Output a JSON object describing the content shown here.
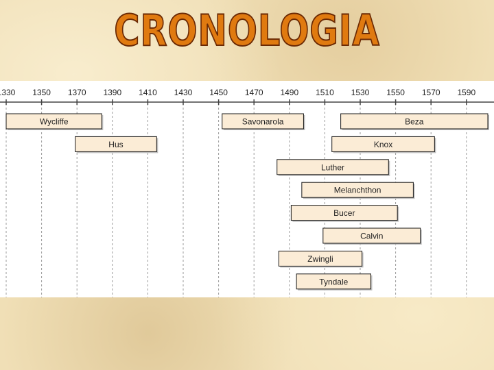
{
  "title": "CRONOLOGIA",
  "colors": {
    "bar_fill": "#fbecd6",
    "bar_stroke": "#1a1a1a",
    "grid": "#9a9a9a",
    "axis": "#444444"
  },
  "chart_data": {
    "type": "bar",
    "orientation": "horizontal-timeline",
    "x_ticks": [
      1330,
      1350,
      1370,
      1390,
      1410,
      1430,
      1450,
      1470,
      1490,
      1510,
      1530,
      1550,
      1570,
      1590
    ],
    "xlim": [
      1330,
      1602
    ],
    "grid": true,
    "series": [
      {
        "name": "Wycliffe",
        "start": 1330,
        "end": 1384,
        "row": 0
      },
      {
        "name": "Savonarola",
        "start": 1452,
        "end": 1498,
        "row": 0
      },
      {
        "name": "Beza",
        "start": 1519,
        "end": 1605,
        "row": 0
      },
      {
        "name": "Hus",
        "start": 1369,
        "end": 1415,
        "row": 1
      },
      {
        "name": "Knox",
        "start": 1514,
        "end": 1572,
        "row": 1
      },
      {
        "name": "Luther",
        "start": 1483,
        "end": 1546,
        "row": 2
      },
      {
        "name": "Melanchthon",
        "start": 1497,
        "end": 1560,
        "row": 3
      },
      {
        "name": "Bucer",
        "start": 1491,
        "end": 1551,
        "row": 4
      },
      {
        "name": "Calvin",
        "start": 1509,
        "end": 1564,
        "row": 5
      },
      {
        "name": "Zwingli",
        "start": 1484,
        "end": 1531,
        "row": 6
      },
      {
        "name": "Tyndale",
        "start": 1494,
        "end": 1536,
        "row": 7
      }
    ]
  }
}
